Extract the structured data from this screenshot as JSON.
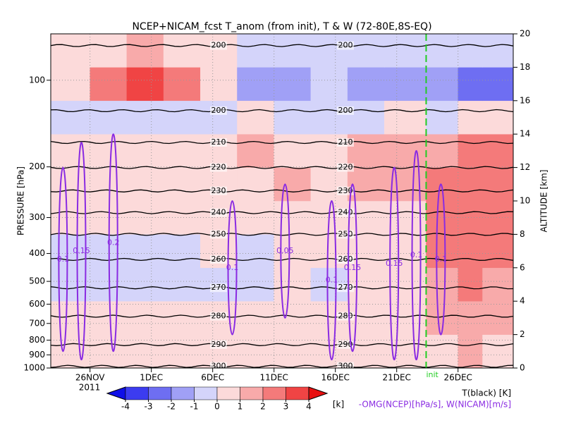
{
  "chart_data": {
    "type": "section",
    "title": "NCEP+NICAM_fcst T_anom (from init), T & W  (72-80E,8S-EQ)",
    "ylabel": "PRESSURE [hPa]",
    "y2label": "ALTITUDE [km]",
    "year": "2011",
    "init_label": "init",
    "init_x": 53.4,
    "legend_t": "T(black) [K]",
    "legend_w": "-OMG(NCEP)[hPa/s], W(NICAM)[m/s]",
    "xlim": [
      22.8,
      60.5
    ],
    "xticks": [
      {
        "value": 26,
        "label": "26NOV"
      },
      {
        "value": 31,
        "label": "1DEC"
      },
      {
        "value": 36,
        "label": "6DEC"
      },
      {
        "value": 41,
        "label": "11DEC"
      },
      {
        "value": 46,
        "label": "16DEC"
      },
      {
        "value": 51,
        "label": "21DEC"
      },
      {
        "value": 56,
        "label": "26DEC"
      }
    ],
    "ylim": [
      1000,
      69
    ],
    "log_y": true,
    "yticks": [
      100,
      200,
      300,
      400,
      500,
      600,
      700,
      800,
      900,
      1000
    ],
    "y2lim": [
      0,
      20
    ],
    "y2ticks": [
      0,
      2,
      4,
      6,
      8,
      10,
      12,
      14,
      16,
      18,
      20
    ],
    "grid": true,
    "x_edges": [
      22.8,
      26,
      29,
      32,
      35,
      38,
      41,
      44,
      47,
      50,
      53.4,
      56,
      58,
      60.5
    ],
    "z_edges": [
      0,
      2,
      4,
      6,
      8,
      10,
      12,
      14,
      16,
      18,
      20
    ],
    "anomaly": [
      [
        0.5,
        0.5,
        0.5,
        0.5,
        0.5,
        0,
        0.5,
        0.5,
        0.5,
        0.5,
        0.5,
        1,
        0.5
      ],
      [
        0.5,
        0,
        0.5,
        0.5,
        0.5,
        0.5,
        0.5,
        0,
        0.5,
        0.5,
        1,
        1.5,
        1
      ],
      [
        -0.5,
        -0.5,
        -0.5,
        -0.5,
        -0.5,
        -0.5,
        0,
        -0.5,
        0,
        0,
        1.5,
        2,
        1.5
      ],
      [
        -0.5,
        -0.5,
        -0.5,
        -0.5,
        0,
        -0.5,
        0,
        0.5,
        0.5,
        0.5,
        2,
        2.5,
        2.5
      ],
      [
        0,
        0.5,
        0.5,
        0,
        0,
        0.5,
        0.5,
        0,
        0.5,
        0.5,
        2,
        2,
        2
      ],
      [
        0.5,
        0.5,
        0.5,
        0.5,
        0.5,
        0.5,
        1,
        0.5,
        1,
        1,
        2,
        2.5,
        2.5
      ],
      [
        0,
        0.5,
        0.5,
        0.5,
        0.5,
        1,
        0.5,
        0.5,
        1,
        1,
        1.5,
        2,
        2
      ],
      [
        -0.5,
        -0.5,
        -1,
        -0.5,
        -0.5,
        0,
        -0.5,
        -0.5,
        -0.5,
        0,
        -0.5,
        0,
        0
      ],
      [
        0.5,
        2,
        3,
        2.5,
        0,
        -2,
        -1.5,
        -0.5,
        -2,
        -1.5,
        -2,
        -2.5,
        -3
      ],
      [
        0.5,
        0.5,
        1,
        0.5,
        0,
        -0.5,
        -1,
        -0.5,
        -1,
        -0.5,
        -1,
        -1,
        -0.5
      ]
    ],
    "colorbar": {
      "levels": [
        -4,
        -3,
        -2,
        -1,
        0,
        1,
        2,
        3,
        4
      ],
      "unit": "[k]",
      "colors": [
        "#1010e8",
        "#3c3cf0",
        "#6e6ef2",
        "#a0a0f6",
        "#d4d4fa",
        "#fcdada",
        "#f8aaaa",
        "#f47a7a",
        "#f04444",
        "#e81010"
      ]
    },
    "isotherms": [
      {
        "value": 200,
        "km": 19.3
      },
      {
        "value": 200,
        "km": 15.4
      },
      {
        "value": 210,
        "km": 13.5
      },
      {
        "value": 220,
        "km": 12.0
      },
      {
        "value": 230,
        "km": 10.6
      },
      {
        "value": 240,
        "km": 9.3
      },
      {
        "value": 250,
        "km": 8.0
      },
      {
        "value": 260,
        "km": 6.5
      },
      {
        "value": 270,
        "km": 4.8
      },
      {
        "value": 280,
        "km": 3.1
      },
      {
        "value": 290,
        "km": 1.4
      },
      {
        "value": 300,
        "km": 0.1
      }
    ],
    "omega": [
      {
        "x": 23.8,
        "z": [
          1,
          12
        ],
        "value": 0.1
      },
      {
        "x": 25.3,
        "z": [
          0.5,
          13.5
        ],
        "value": 0.15
      },
      {
        "x": 27.9,
        "z": [
          1,
          14
        ],
        "value": 0.2
      },
      {
        "x": 37.6,
        "z": [
          2,
          10
        ],
        "value": 0.1
      },
      {
        "x": 41.9,
        "z": [
          3,
          11
        ],
        "value": 0.05
      },
      {
        "x": 45.7,
        "z": [
          0.5,
          10
        ],
        "value": 0.1
      },
      {
        "x": 47.4,
        "z": [
          1,
          11
        ],
        "value": 0.15
      },
      {
        "x": 50.8,
        "z": [
          0.5,
          12
        ],
        "value": 0.15
      },
      {
        "x": 52.6,
        "z": [
          0.5,
          13
        ],
        "value": 0.1
      },
      {
        "x": 54.6,
        "z": [
          2,
          11
        ],
        "value": 0.1
      }
    ]
  }
}
